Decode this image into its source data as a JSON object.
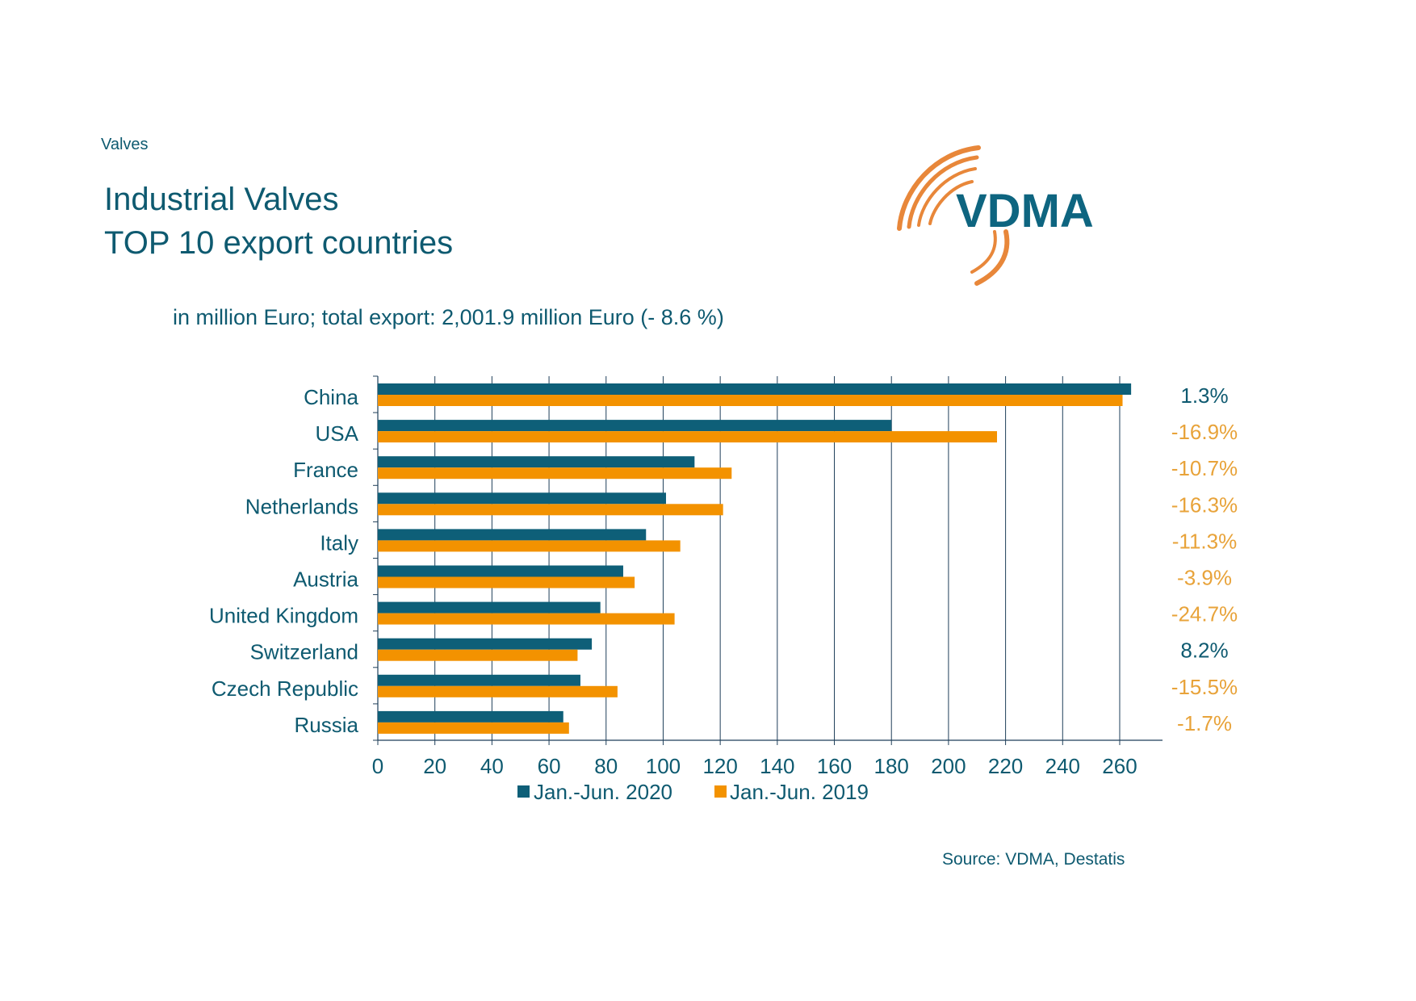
{
  "header": {
    "section_label": "Valves",
    "title_line1": "Industrial Valves",
    "title_line2": "TOP 10 export countries",
    "subtitle": "in million Euro; total export: 2,001.9 million Euro (- 8.6 %)"
  },
  "logo": {
    "text": "VDMA",
    "icon": "vdma-arcs-logo"
  },
  "footer": {
    "source": "Source: VDMA, Destatis"
  },
  "colors": {
    "series_2020": "#0e5f78",
    "series_2019": "#f39200",
    "text": "#0e5a70",
    "grid": "#1f3f5a",
    "positive_change": "#0e5a70",
    "negative_change": "#e8a33a"
  },
  "chart_data": {
    "type": "bar",
    "orientation": "horizontal",
    "categories": [
      "China",
      "USA",
      "France",
      "Netherlands",
      "Italy",
      "Austria",
      "United Kingdom",
      "Switzerland",
      "Czech Republic",
      "Russia"
    ],
    "series": [
      {
        "name": "Jan.-Jun. 2020",
        "values": [
          264,
          180,
          111,
          101,
          94,
          86,
          78,
          75,
          71,
          65
        ]
      },
      {
        "name": "Jan.-Jun. 2019",
        "values": [
          261,
          217,
          124,
          121,
          106,
          90,
          104,
          70,
          84,
          67
        ]
      }
    ],
    "changes": [
      "1.3%",
      "-16.9%",
      "-10.7%",
      "-16.3%",
      "-11.3%",
      "-3.9%",
      "-24.7%",
      "8.2%",
      "-15.5%",
      "-1.7%"
    ],
    "xlim": [
      0,
      275
    ],
    "xticks": [
      "0",
      "20",
      "40",
      "60",
      "80",
      "100",
      "120",
      "140",
      "160",
      "180",
      "200",
      "220",
      "240",
      "260"
    ],
    "grid": true,
    "legend_position": "bottom"
  }
}
